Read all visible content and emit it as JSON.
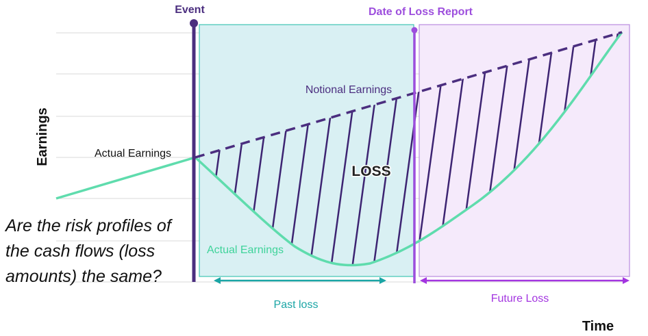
{
  "labels": {
    "event": "Event",
    "date_of_loss_report": "Date of Loss Report",
    "notional_earnings": "Notional Earnings",
    "actual_earnings_left": "Actual Earnings",
    "actual_earnings_bottom": "Actual Earnings",
    "loss": "LOSS",
    "y_axis": "Earnings",
    "x_axis": "Time",
    "past_loss": "Past loss",
    "future_loss": "Future Loss"
  },
  "question": "Are the risk profiles of the cash flows (loss amounts) the same?",
  "colors": {
    "event_line": "#4b2e7f",
    "report_line": "#9d4edd",
    "actual_curve": "#5fdcad",
    "notional_line": "#4b2e7f",
    "hatch": "#3d2472",
    "past_region_fill": "#d9f0f3",
    "past_region_border": "#3fc4b3",
    "future_region_fill": "#f5eafb",
    "future_region_border": "#b98be0",
    "past_arrow": "#1aa5a5",
    "future_arrow": "#a335e0",
    "grid": "#d9d9d9"
  }
}
